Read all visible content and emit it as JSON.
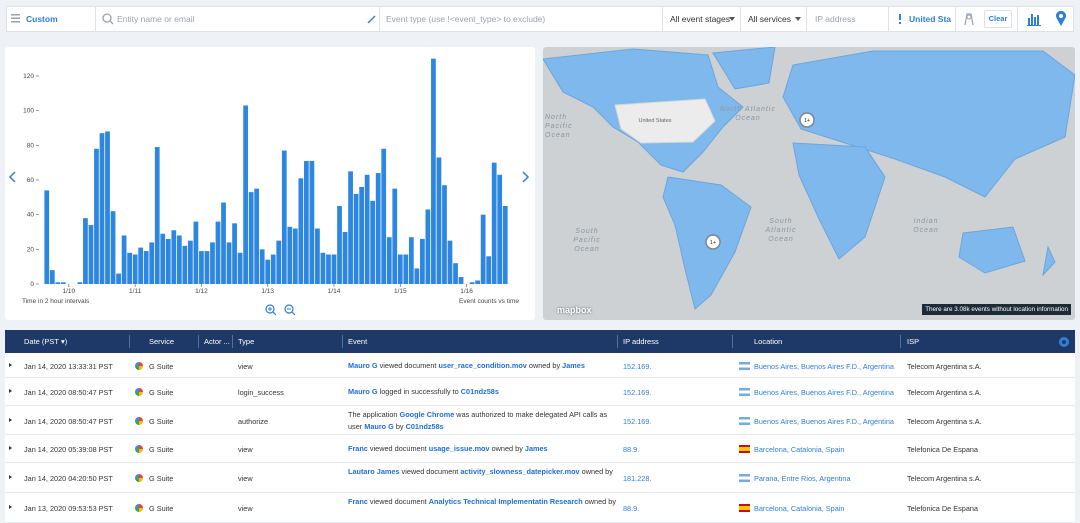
{
  "filters": {
    "range": "Custom",
    "entity_placeholder": "Entity name or email",
    "event_placeholder": "Event type (use !<event_type> to exclude)",
    "stages": "All event stages",
    "services": "All services",
    "ip_placeholder": "IP address",
    "country": "United Sta",
    "clear": "Clear"
  },
  "chart_data": {
    "type": "bar",
    "xlabel": "Time in 2 hour intervals",
    "ylabel": "Event counts vs time",
    "color": "#2d87e0",
    "categories": [
      null,
      null,
      null,
      null,
      "1/10",
      null,
      null,
      null,
      null,
      null,
      null,
      null,
      null,
      null,
      null,
      null,
      "1/11",
      null,
      null,
      null,
      null,
      null,
      null,
      null,
      null,
      null,
      null,
      null,
      "1/12",
      null,
      null,
      null,
      null,
      null,
      null,
      null,
      null,
      null,
      null,
      null,
      "1/13",
      null,
      null,
      null,
      null,
      null,
      null,
      null,
      null,
      null,
      null,
      null,
      "1/14",
      null,
      null,
      null,
      null,
      null,
      null,
      null,
      null,
      null,
      null,
      null,
      "1/15",
      null,
      null,
      null,
      null,
      null,
      null,
      null,
      null,
      null,
      null,
      null,
      "1/16",
      null,
      null,
      null,
      null,
      null,
      null,
      null
    ],
    "values": [
      54,
      8,
      1,
      1,
      0,
      0,
      1,
      38,
      34,
      78,
      87,
      88,
      42,
      6,
      28,
      18,
      17,
      21,
      19,
      24,
      79,
      29,
      26,
      31,
      28,
      22,
      25,
      36,
      19,
      19,
      24,
      36,
      47,
      24,
      35,
      18,
      103,
      53,
      55,
      20,
      14,
      17,
      25,
      77,
      33,
      32,
      61,
      71,
      71,
      32,
      18,
      17,
      17,
      45,
      30,
      65,
      52,
      56,
      63,
      48,
      64,
      78,
      27,
      55,
      17,
      17,
      27,
      9,
      26,
      43,
      130,
      73,
      57,
      25,
      12,
      4,
      0,
      1,
      2,
      40,
      16,
      70,
      63,
      45
    ],
    "ylim": [
      0,
      135
    ],
    "yticks": [
      0,
      20,
      40,
      60,
      80,
      100,
      120
    ]
  },
  "map": {
    "labels": [
      "North Pacific Ocean",
      "North Atlantic Ocean",
      "South Pacific Ocean",
      "South Atlantic Ocean",
      "Indian Ocean",
      "United States"
    ],
    "markers": [
      "1+",
      "1+"
    ],
    "attribution": "mapbox",
    "notice": "There are 3.08k events without location information"
  },
  "table": {
    "columns": [
      "Date (PST ▾)",
      "Service",
      "Actor ...",
      "Type",
      "Event",
      "IP address",
      "Location",
      "ISP"
    ],
    "rows": [
      {
        "date": "Jan 14, 2020 13:33:31 PST",
        "service": "G Suite",
        "type": "view",
        "event": [
          {
            "text": "Mauro G",
            "link": true
          },
          {
            "text": "viewed document",
            "link": false
          },
          {
            "text": "user_race_condition.mov",
            "link": true
          },
          {
            "text": "owned by",
            "link": false
          },
          {
            "text": "James",
            "link": true
          }
        ],
        "ip": "152.169.",
        "location": "Buenos Aires, Buenos Aires F.D., Argentina",
        "isp": "Telecom Argentina s.A."
      },
      {
        "date": "Jan 14, 2020 08:50:47 PST",
        "service": "G Suite",
        "type": "login_success",
        "event": [
          {
            "text": "Mauro G",
            "link": true
          },
          {
            "text": "logged in successfully to",
            "link": false
          },
          {
            "text": "C01ndz58s",
            "link": true
          }
        ],
        "ip": "152.169.",
        "location": "Buenos Aires, Buenos Aires F.D., Argentina",
        "isp": "Telecom Argentina s.A."
      },
      {
        "date": "Jan 14, 2020 08:50:47 PST",
        "service": "G Suite",
        "type": "authorize",
        "event": [
          {
            "text": "The application",
            "link": false
          },
          {
            "text": "Google Chrome",
            "link": true
          },
          {
            "text": "was authorized to make delegated API calls as user",
            "link": false
          },
          {
            "text": "Mauro G",
            "link": true
          },
          {
            "text": "by",
            "link": false
          },
          {
            "text": "C01ndz58s",
            "link": true
          }
        ],
        "ip": "152.169.",
        "location": "Buenos Aires, Buenos Aires F.D., Argentina",
        "isp": "Telecom Argentina s.A."
      },
      {
        "date": "Jan 14, 2020 05:39:08 PST",
        "service": "G Suite",
        "type": "view",
        "event": [
          {
            "text": "Franc",
            "link": true
          },
          {
            "text": "viewed document",
            "link": false
          },
          {
            "text": "usage_issue.mov",
            "link": true
          },
          {
            "text": "owned by",
            "link": false
          },
          {
            "text": "James",
            "link": true
          }
        ],
        "ip": "88.9.",
        "location": "Barcelona, Catalonia, Spain",
        "isp": "Telefonica De Espana"
      },
      {
        "date": "Jan 14, 2020 04:20:50 PST",
        "service": "G Suite",
        "type": "view",
        "event": [
          {
            "text": "Lautaro James",
            "link": true
          },
          {
            "text": "viewed document",
            "link": false
          },
          {
            "text": "activity_slowness_datepicker.mov",
            "link": true
          },
          {
            "text": "owned by",
            "link": false
          }
        ],
        "ip": "181.228.",
        "location": "Parana, Entre Rios, Argentina",
        "isp": "Telecom Argentina s.A."
      },
      {
        "date": "Jan 13, 2020 09:53:53 PST",
        "service": "G Suite",
        "type": "view",
        "event": [
          {
            "text": "Franc",
            "link": true
          },
          {
            "text": "viewed document",
            "link": false
          },
          {
            "text": "Analytics Technical Implementatin Research",
            "link": true
          },
          {
            "text": "owned by",
            "link": false
          }
        ],
        "ip": "88.9.",
        "location": "Barcelona, Catalonia, Spain",
        "isp": "Telefonica De Espana"
      }
    ]
  }
}
